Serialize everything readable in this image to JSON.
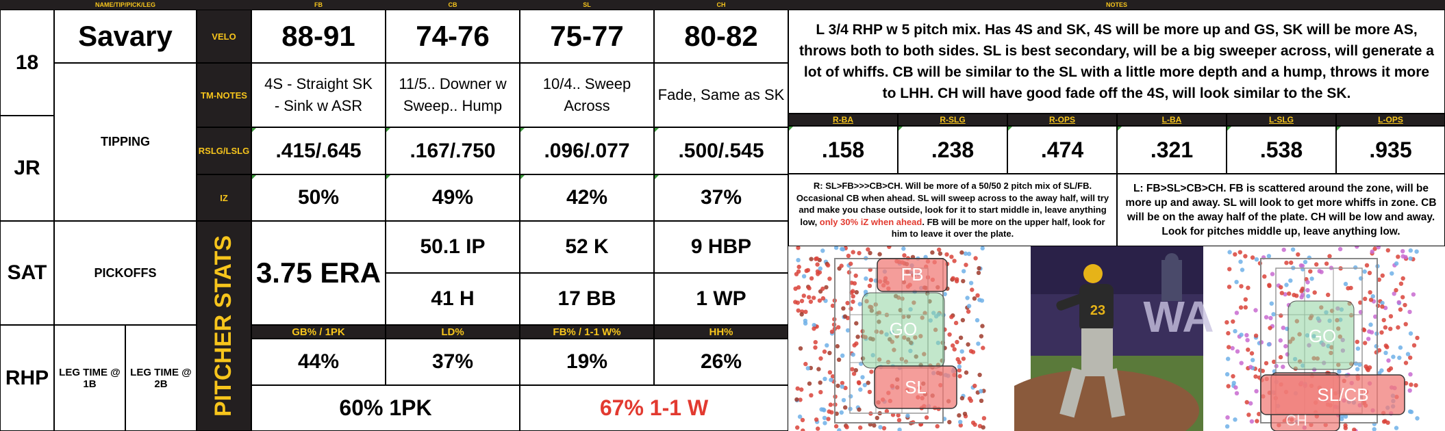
{
  "header": {
    "name_col": "NAME/TIP/PICK/LEG",
    "fb": "FB",
    "cb": "CB",
    "sl": "SL",
    "ch": "CH",
    "notes": "NOTES"
  },
  "player": {
    "number": "18",
    "name": "Savary",
    "class": "JR",
    "school": "SAT",
    "hand": "RHP",
    "tipping": "TIPPING",
    "pickoffs": "PICKOFFS",
    "leg_time_1b": "LEG TIME @ 1B",
    "leg_time_2b": "LEG TIME @ 2B"
  },
  "row_labels": {
    "velo": "VELO",
    "tm_notes": "TM-NOTES",
    "rslg": "RSLG/LSLG",
    "iz": "IZ",
    "pitcher_stats": "PITCHER STATS"
  },
  "velo": {
    "fb": "88-91",
    "cb": "74-76",
    "sl": "75-77",
    "ch": "80-82"
  },
  "tm_notes": {
    "fb": "4S - Straight SK - Sink w ASR",
    "cb": "11/5.. Downer w Sweep.. Hump",
    "sl": "10/4.. Sweep Across",
    "ch": "Fade, Same as SK"
  },
  "rslg": {
    "fb": ".415/.645",
    "cb": ".167/.750",
    "sl": ".096/.077",
    "ch": ".500/.545"
  },
  "iz": {
    "fb": "50%",
    "cb": "49%",
    "sl": "42%",
    "ch": "37%"
  },
  "stats": {
    "era": "3.75 ERA",
    "ip": "50.1 IP",
    "k": "52 K",
    "hbp": "9 HBP",
    "h": "41 H",
    "bb": "17 BB",
    "wp": "1 WP"
  },
  "stat_headers": {
    "gb": "GB% / 1PK",
    "ld": "LD%",
    "fb": "FB% / 1-1 W%",
    "hh": "HH%"
  },
  "stat_values": {
    "gb": "44%",
    "ld": "37%",
    "fb": "19%",
    "hh": "26%"
  },
  "bottom": {
    "first_pitch": "60% 1PK",
    "one_one": "67% 1-1 W"
  },
  "notes_text": "L 3/4 RHP w 5 pitch mix. Has 4S and SK, 4S will be more up and GS, SK will be more AS, throws both to both sides. SL is best secondary, will be a big sweeper across, will generate a lot of whiffs. CB will be similar to the SL with a little more depth and a hump, throws it more to LHH. CH will have good fade off the 4S, will look similar to the SK.",
  "splits_headers": {
    "rba": "R-BA",
    "rslg": "R-SLG",
    "rops": "R-OPS",
    "lba": "L-BA",
    "lslg": "L-SLG",
    "lops": "L-OPS"
  },
  "splits_values": {
    "rba": ".158",
    "rslg": ".238",
    "rops": ".474",
    "lba": ".321",
    "lslg": ".538",
    "lops": ".935"
  },
  "right_notes": {
    "part1": "R: SL>FB>>>CB>CH. Will be more of a 50/50 2 pitch mix of SL/FB. Occasional CB when ahead. SL will sweep across to the away half, will try and make you chase outside, look for it to start middle in, leave anything low, ",
    "highlight": "only 30% iZ when ahead",
    "part2": ". FB will be more on the upper half, look for him to leave it over the plate."
  },
  "left_notes": "L: FB>SL>CB>CH. FB is scattered around the zone, will be more up and away. SL will look to get more whiffs in zone. CB will be on the away half of the plate. CH will be low and away. Look for pitches middle up, leave anything low.",
  "zone_labels": {
    "rhh_fb": "FB",
    "rhh_go": "GO",
    "rhh_sl": "SL",
    "lhh_go": "GO",
    "lhh_slcb": "SL/CB",
    "lhh_ch": "CH"
  },
  "photo_text": "WA",
  "jersey_number": "23",
  "colors": {
    "dark": "#231f20",
    "gold": "#f7c51c",
    "red": "#e23a30"
  }
}
